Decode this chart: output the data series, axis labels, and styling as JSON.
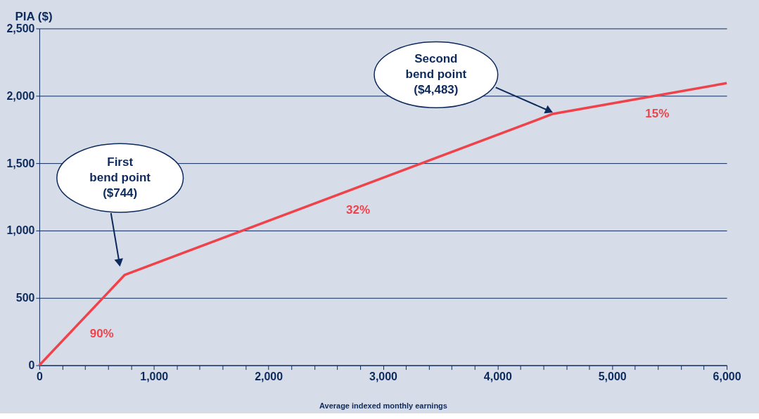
{
  "chart_data": {
    "type": "line",
    "xlabel": "Average indexed monthly earnings",
    "ylabel": "PIA ($)",
    "x": [
      0,
      600,
      744,
      4483,
      6000
    ],
    "series": [
      {
        "color": "#f0424a",
        "values": [
          0,
          540,
          670,
          1866,
          2094
        ]
      }
    ],
    "xlim": [
      0,
      6000
    ],
    "ylim": [
      0,
      2500
    ],
    "xticks": [
      0,
      {
        "value": 200,
        "label": null
      },
      {
        "value": 400,
        "label": null
      },
      {
        "value": 600,
        "label": null
      },
      {
        "value": 800,
        "label": null
      },
      {
        "value": 1000,
        "label": "1,000"
      },
      {
        "value": 1200,
        "label": null
      },
      {
        "value": 1400,
        "label": null
      },
      {
        "value": 1600,
        "label": null
      },
      {
        "value": 1800,
        "label": null
      },
      {
        "value": 2000,
        "label": "2,000"
      },
      {
        "value": 2200,
        "label": null
      },
      {
        "value": 2400,
        "label": null
      },
      {
        "value": 2600,
        "label": null
      },
      {
        "value": 2800,
        "label": null
      },
      {
        "value": 3000,
        "label": "3,000"
      },
      {
        "value": 3200,
        "label": null
      },
      {
        "value": 3400,
        "label": null
      },
      {
        "value": 3600,
        "label": null
      },
      {
        "value": 3800,
        "label": null
      },
      {
        "value": 4000,
        "label": "4,000"
      },
      {
        "value": 4200,
        "label": null
      },
      {
        "value": 4400,
        "label": null
      },
      {
        "value": 4600,
        "label": null
      },
      {
        "value": 4800,
        "label": null
      },
      {
        "value": 5000,
        "label": "5,000"
      },
      {
        "value": 5200,
        "label": null
      },
      {
        "value": 5400,
        "label": null
      },
      {
        "value": 5600,
        "label": null
      },
      {
        "value": 5800,
        "label": null
      },
      {
        "value": 6000,
        "label": "6,000"
      }
    ],
    "yticks": [
      0,
      500,
      {
        "value": 1000,
        "label": "1,000"
      },
      {
        "value": 1500,
        "label": "1,500"
      },
      {
        "value": 2000,
        "label": "2,000"
      },
      {
        "value": 2500,
        "label": "2,500"
      }
    ],
    "grid": "y",
    "marker": "none",
    "line_style": "solid",
    "annotations": [
      "First\nbend point\n($744)",
      "Second\nbend point\n($4,483)",
      "90%",
      "32%",
      "15%"
    ]
  }
}
